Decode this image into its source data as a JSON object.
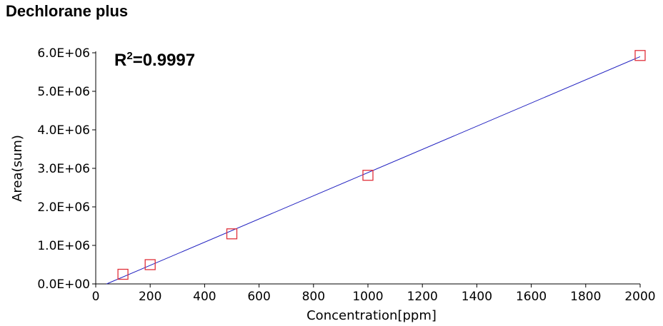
{
  "title": "Dechlorane plus",
  "chart_data": {
    "type": "scatter",
    "title": "Dechlorane plus",
    "xlabel": "Concentration[ppm]",
    "ylabel": "Area(sum)",
    "xlim": [
      0,
      2000
    ],
    "ylim": [
      0,
      6000000
    ],
    "x_ticks": [
      0,
      200,
      400,
      600,
      800,
      1000,
      1200,
      1400,
      1600,
      1800,
      2000
    ],
    "x_tick_labels": [
      "0",
      "200",
      "400",
      "600",
      "800",
      "1000",
      "1200",
      "1400",
      "1600",
      "1800",
      "2000"
    ],
    "y_ticks": [
      0,
      1000000,
      2000000,
      3000000,
      4000000,
      5000000,
      6000000
    ],
    "y_tick_labels": [
      "0.0E+00",
      "1.0E+06",
      "2.0E+06",
      "3.0E+06",
      "4.0E+06",
      "5.0E+06",
      "6.0E+06"
    ],
    "points": [
      {
        "x": 100,
        "y": 250000
      },
      {
        "x": 200,
        "y": 500000
      },
      {
        "x": 500,
        "y": 1300000
      },
      {
        "x": 1000,
        "y": 2820000
      },
      {
        "x": 2000,
        "y": 5930000
      }
    ],
    "fit_line": {
      "x": [
        40,
        2000
      ],
      "y": [
        0,
        5900000
      ]
    },
    "annotation": {
      "prefix": "R",
      "superscript": "2",
      "suffix": "=0.9997"
    },
    "grid": false,
    "legend": "none",
    "marker_color": "#e0303a",
    "line_color": "#2020c0"
  }
}
